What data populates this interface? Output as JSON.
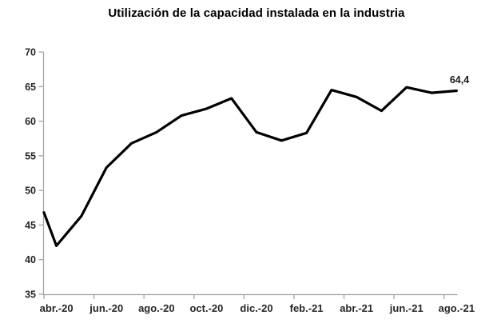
{
  "chart": {
    "title": "Utilización de la capacidad instalada en la industria"
  },
  "chart_data": {
    "type": "line",
    "title": "Utilización de la capacidad instalada en la industria",
    "categories": [
      "abr.-20",
      "may.-20",
      "jun.-20",
      "jul.-20",
      "ago.-20",
      "sep.-20",
      "oct.-20",
      "nov.-20",
      "dic.-20",
      "ene.-21",
      "feb.-21",
      "mar.-21",
      "abr.-21",
      "may.-21",
      "jun.-21",
      "jul.-21",
      "ago.-21"
    ],
    "values": [
      42.0,
      46.3,
      53.3,
      56.8,
      58.4,
      60.8,
      61.8,
      63.3,
      58.4,
      57.2,
      58.3,
      64.5,
      63.5,
      61.5,
      64.9,
      64.1,
      64.4
    ],
    "axis_entry_value": 46.8,
    "x_tick_labels": [
      "abr.-20",
      "jun.-20",
      "ago.-20",
      "oct.-20",
      "dic.-20",
      "feb.-21",
      "abr.-21",
      "jun.-21",
      "ago.-21"
    ],
    "y_ticks": [
      70,
      65,
      60,
      55,
      50,
      45,
      40,
      35
    ],
    "ylim": [
      35,
      70
    ],
    "last_point_label": "64,4",
    "grid": false,
    "legend": false,
    "colors": {
      "line": "#000000",
      "axis": "#a6a6a6",
      "tick_label": "#262626",
      "title": "#000000",
      "value_label": "#1a1a1a"
    }
  }
}
